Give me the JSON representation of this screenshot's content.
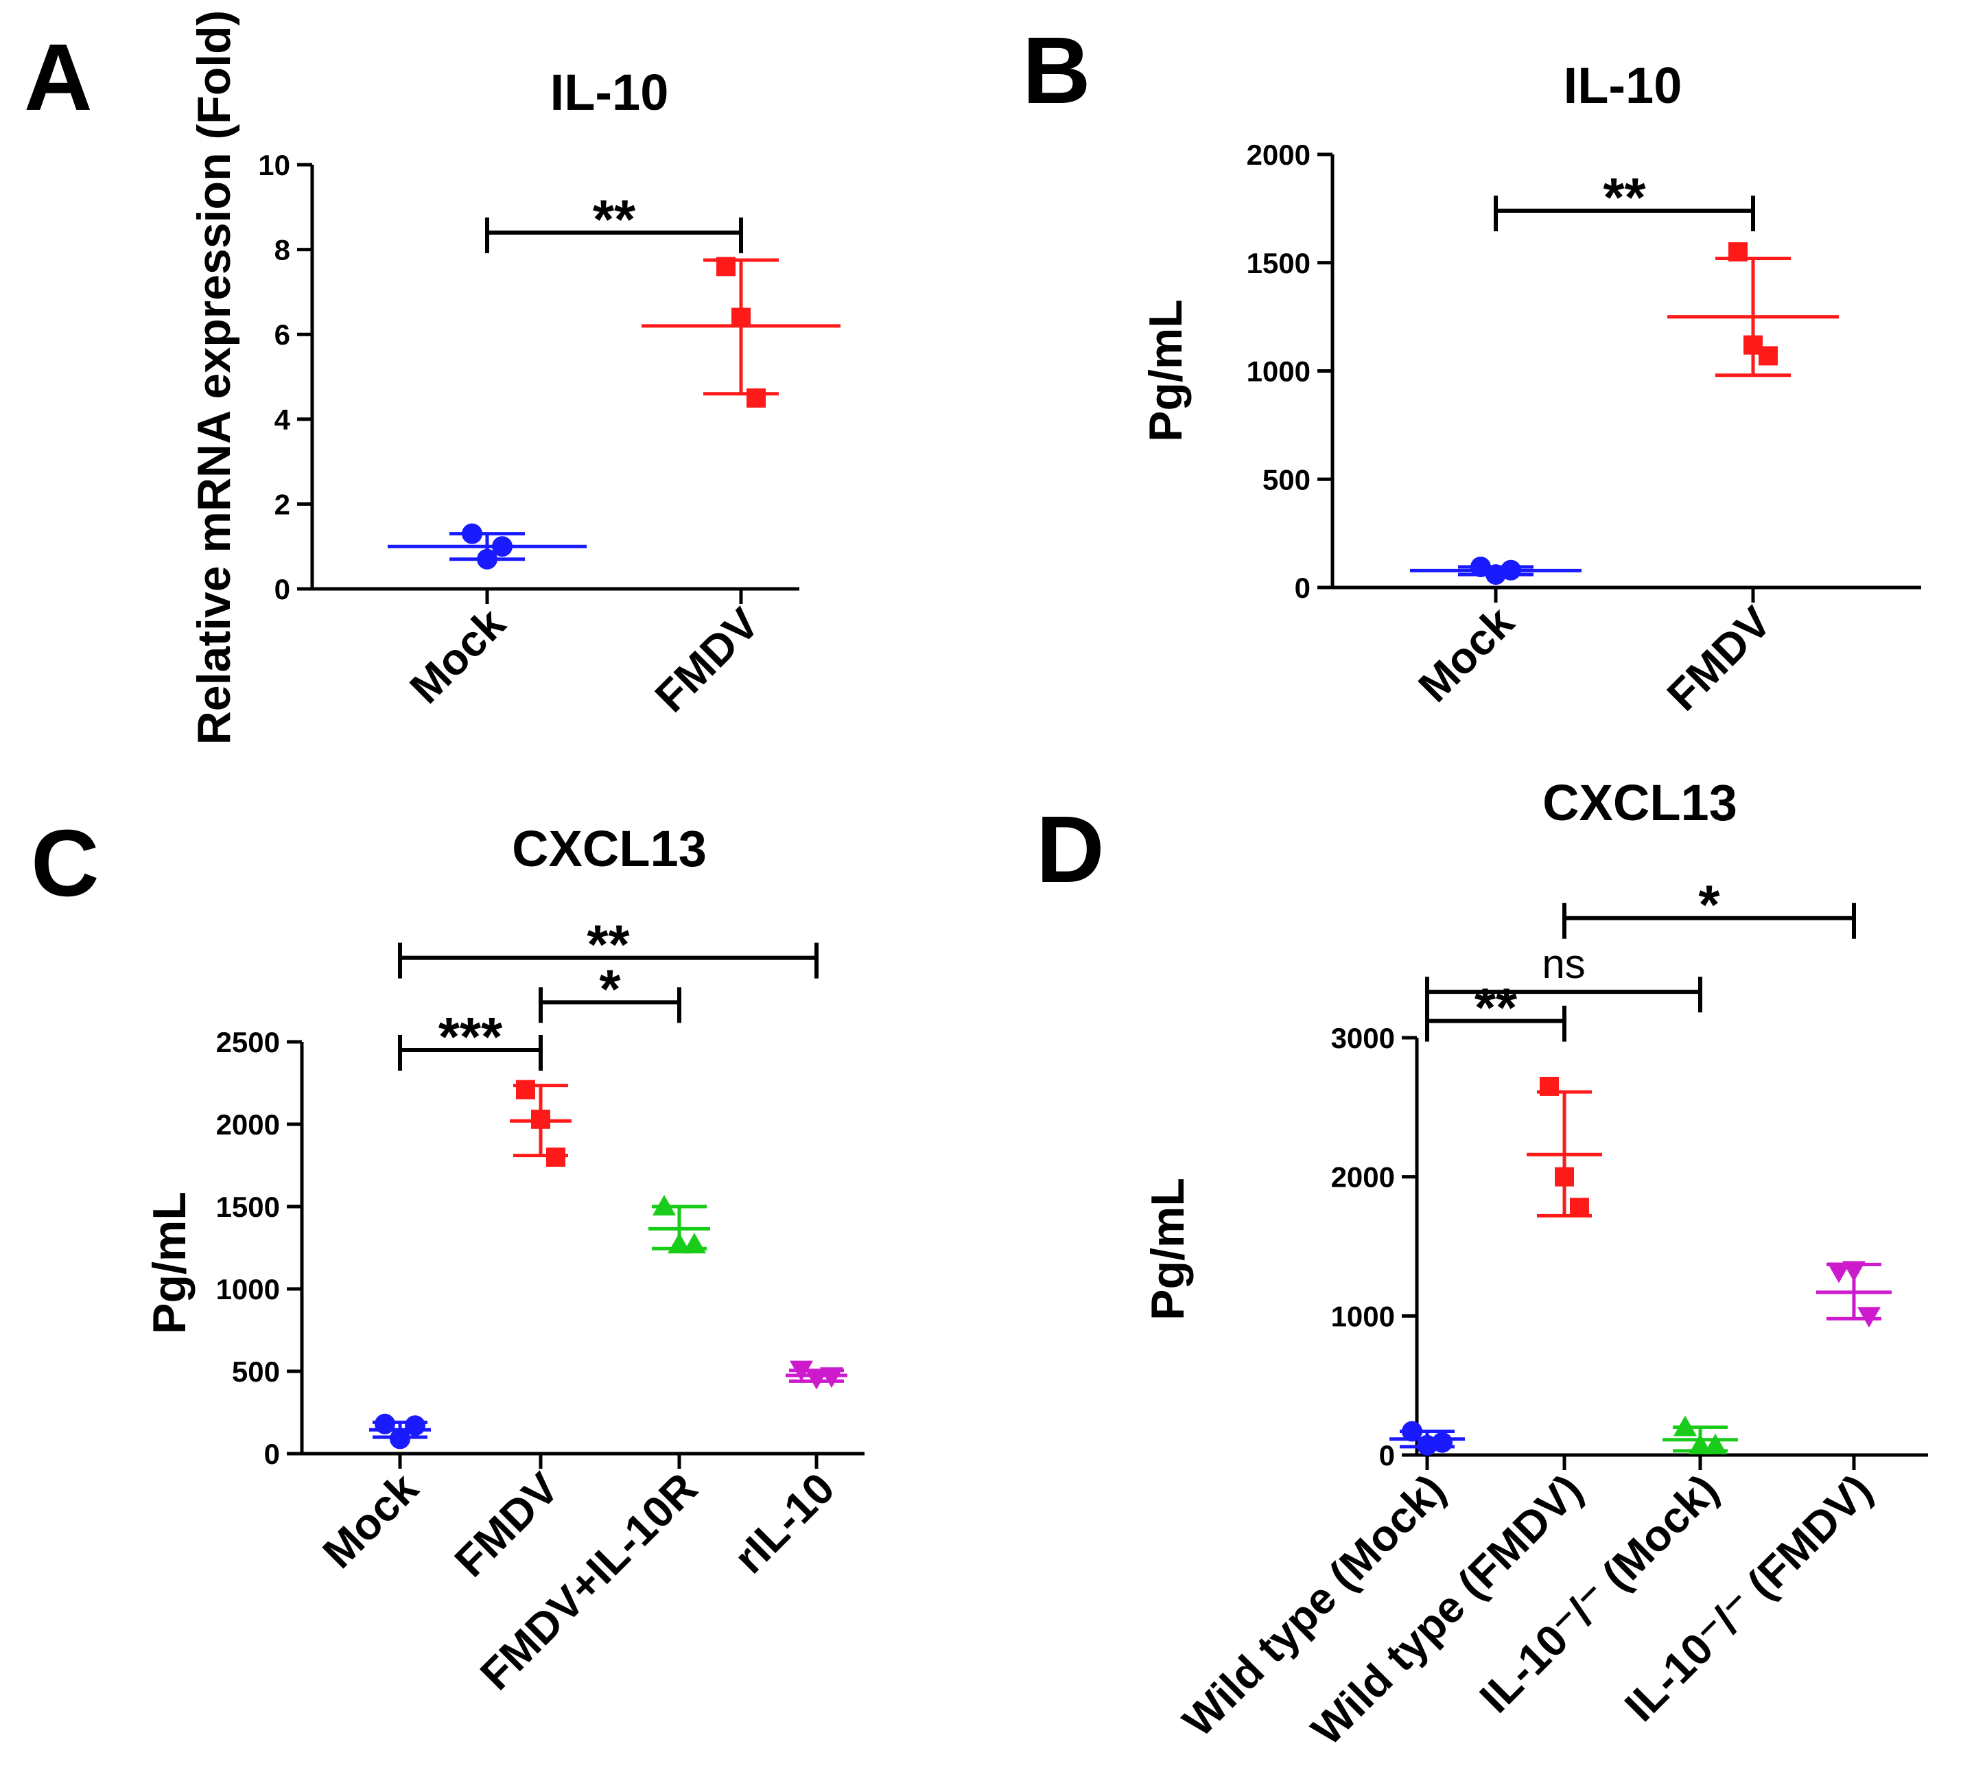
{
  "chart_data": [
    {
      "panel": "A",
      "type": "scatter",
      "title": "IL-10",
      "ylabel": "Relative mRNA expression (Fold)",
      "ylim": [
        0,
        10
      ],
      "yticks": [
        "0",
        "2",
        "4",
        "6",
        "8",
        "10"
      ],
      "categories": [
        "Mock",
        "FMDV"
      ],
      "groups": [
        {
          "name": "Mock",
          "color": "#1a1aff",
          "marker": "circle",
          "points": [
            1.3,
            0.7,
            1.0
          ],
          "mean": 1.0,
          "sd_low": 0.7,
          "sd_high": 1.3
        },
        {
          "name": "FMDV",
          "color": "#ff1a1a",
          "marker": "square",
          "points": [
            7.6,
            6.4,
            4.5
          ],
          "mean": 6.2,
          "sd_low": 4.6,
          "sd_high": 7.75
        }
      ],
      "significance": [
        {
          "from": 0,
          "to": 1,
          "label": "**",
          "y": 8.4
        }
      ]
    },
    {
      "panel": "B",
      "type": "scatter",
      "title": "IL-10",
      "ylabel": "Pg/mL",
      "ylim": [
        0,
        2000
      ],
      "yticks": [
        "0",
        "500",
        "1000",
        "1500",
        "2000"
      ],
      "categories": [
        "Mock",
        "FMDV"
      ],
      "groups": [
        {
          "name": "Mock",
          "color": "#1a1aff",
          "marker": "circle",
          "points": [
            95,
            60,
            80
          ],
          "mean": 78,
          "sd_low": 60,
          "sd_high": 95
        },
        {
          "name": "FMDV",
          "color": "#ff1a1a",
          "marker": "square",
          "points": [
            1550,
            1120,
            1070
          ],
          "mean": 1250,
          "sd_low": 980,
          "sd_high": 1520
        }
      ],
      "significance": [
        {
          "from": 0,
          "to": 1,
          "label": "**",
          "y": 1740
        }
      ]
    },
    {
      "panel": "C",
      "type": "scatter",
      "title": "CXCL13",
      "ylabel": "Pg/mL",
      "ylim": [
        0,
        2500
      ],
      "yticks": [
        "0",
        "500",
        "1000",
        "1500",
        "2000",
        "2500"
      ],
      "categories": [
        "Mock",
        "FMDV",
        "FMDV+IL-10R",
        "rIL-10"
      ],
      "groups": [
        {
          "name": "Mock",
          "color": "#1a1aff",
          "marker": "circle",
          "points": [
            180,
            90,
            170
          ],
          "mean": 145,
          "sd_low": 100,
          "sd_high": 190
        },
        {
          "name": "FMDV",
          "color": "#ff1a1a",
          "marker": "square",
          "points": [
            2210,
            2030,
            1800
          ],
          "mean": 2020,
          "sd_low": 1810,
          "sd_high": 2235
        },
        {
          "name": "FMDV+IL-10R",
          "color": "#1acc1a",
          "marker": "triangle-up",
          "points": [
            1500,
            1270,
            1270
          ],
          "mean": 1365,
          "sd_low": 1245,
          "sd_high": 1500
        },
        {
          "name": "rIL-10",
          "color": "#cc1acc",
          "marker": "triangle-down",
          "points": [
            510,
            460,
            470
          ],
          "mean": 475,
          "sd_low": 440,
          "sd_high": 505
        }
      ],
      "significance": [
        {
          "from": 0,
          "to": 1,
          "label": "***",
          "y": 2450
        },
        {
          "from": 1,
          "to": 2,
          "label": "*",
          "y": 2740
        },
        {
          "from": 0,
          "to": 3,
          "label": "**",
          "y": 3010
        }
      ]
    },
    {
      "panel": "D",
      "type": "scatter",
      "title": "CXCL13",
      "ylabel": "Pg/mL",
      "ylim": [
        0,
        3000
      ],
      "yticks": [
        "0",
        "1000",
        "2000",
        "3000"
      ],
      "categories": [
        "Wild type (Mock)",
        "Wild type (FMDV)",
        "IL-10⁻/⁻ (Mock)",
        "IL-10⁻/⁻ (FMDV)"
      ],
      "groups": [
        {
          "name": "Wild type (Mock)",
          "color": "#1a1aff",
          "marker": "circle",
          "points": [
            170,
            70,
            90
          ],
          "mean": 115,
          "sd_low": 60,
          "sd_high": 170
        },
        {
          "name": "Wild type (FMDV)",
          "color": "#ff1a1a",
          "marker": "square",
          "points": [
            2650,
            2000,
            1780
          ],
          "mean": 2160,
          "sd_low": 1720,
          "sd_high": 2610
        },
        {
          "name": "IL-10⁻/⁻ (Mock)",
          "color": "#1acc1a",
          "marker": "triangle-up",
          "points": [
            200,
            70,
            70
          ],
          "mean": 110,
          "sd_low": 30,
          "sd_high": 200
        },
        {
          "name": "IL-10⁻/⁻ (FMDV)",
          "color": "#cc1acc",
          "marker": "triangle-down",
          "points": [
            1320,
            1330,
            1000
          ],
          "mean": 1170,
          "sd_low": 980,
          "sd_high": 1370
        }
      ],
      "significance": [
        {
          "from": 0,
          "to": 1,
          "label": "**",
          "y": 3120
        },
        {
          "from": 0,
          "to": 2,
          "label": "ns",
          "y": 3330
        },
        {
          "from": 1,
          "to": 3,
          "label": "*",
          "y": 3860
        }
      ]
    }
  ]
}
